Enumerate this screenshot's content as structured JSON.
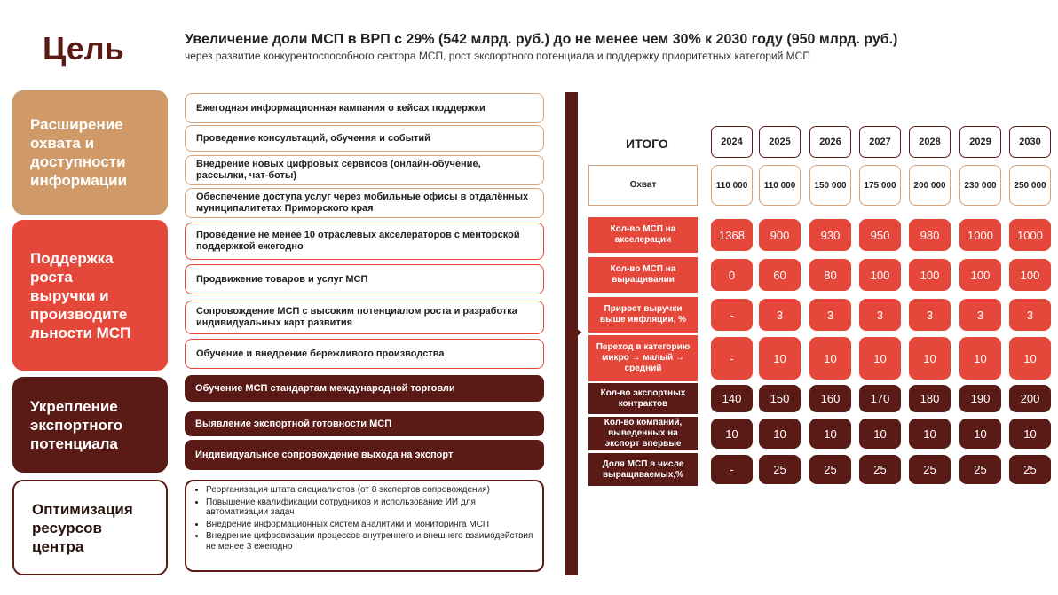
{
  "goal_label": "Цель",
  "title": "Увеличение доли МСП в ВРП с 29% (542 млрд. руб.) до не менее чем 30% к 2030 году (950 млрд. руб.)",
  "subtitle": "через развитие конкурентоспособного сектора МСП, рост экспортного потенциала и поддержку приоритетных категорий МСП",
  "categories": [
    {
      "lines": [
        "Расширение",
        "охвата и",
        "доступности",
        "информации"
      ]
    },
    {
      "lines": [
        "Поддержка",
        "роста",
        "выручки и",
        "производите",
        "льности МСП"
      ]
    },
    {
      "lines": [
        "Укрепление",
        "экспортного",
        "потенциала"
      ]
    },
    {
      "lines": [
        "Оптимизация",
        "ресурсов",
        "центра"
      ]
    }
  ],
  "actions": [
    "Ежегодная информационная кампания о кейсах поддержки",
    "Проведение консультаций, обучения и событий",
    "Внедрение новых цифровых сервисов (онлайн-обучение, рассылки, чат-боты)",
    "Обеспечение доступа услуг через мобильные офисы в отдалённых муниципалитетах Приморского края",
    "Проведение не менее 10 отраслевых акселераторов с менторской поддержкой ежегодно",
    "Продвижение товаров и услуг МСП",
    "Сопровождение МСП с высоким потенциалом роста и разработка индивидуальных карт развития",
    "Обучение и внедрение бережливого производства",
    "Обучение МСП стандартам международной торговли",
    "Выявление экспортной готовности МСП",
    "Индивидуальное сопровождение выхода на экспорт"
  ],
  "resource_items": [
    "Реорганизация штата специалистов (от 8 экспертов сопровождения)",
    "Повышение квалификации сотрудников и использование ИИ для автоматизации задач",
    "Внедрение информационных систем аналитики и мониторинга МСП",
    "Внедрение цифровизации процессов внутреннего и внешнего взаимодействия не менее 3 ежегодно"
  ],
  "table": {
    "itogo": "ИТОГО",
    "years": [
      "2024",
      "2025",
      "2026",
      "2027",
      "2028",
      "2029",
      "2030"
    ],
    "rows": [
      {
        "label": "Охват",
        "values": [
          "110 000",
          "110 000",
          "150 000",
          "175 000",
          "200 000",
          "230 000",
          "250 000"
        ]
      },
      {
        "label": "Кол-во МСП на акселерации",
        "values": [
          "1368",
          "900",
          "930",
          "950",
          "980",
          "1000",
          "1000"
        ]
      },
      {
        "label": "Кол-во МСП на выращивании",
        "values": [
          "0",
          "60",
          "80",
          "100",
          "100",
          "100",
          "100"
        ]
      },
      {
        "label": "Прирост выручки выше инфляции, %",
        "values": [
          "-",
          "3",
          "3",
          "3",
          "3",
          "3",
          "3"
        ]
      },
      {
        "label": "Переход в категорию микро → малый → средний",
        "values": [
          "-",
          "10",
          "10",
          "10",
          "10",
          "10",
          "10"
        ]
      },
      {
        "label": "Кол-во экспортных контрактов",
        "values": [
          "140",
          "150",
          "160",
          "170",
          "180",
          "190",
          "200"
        ]
      },
      {
        "label": "Кол-во компаний, выведенных на экспорт впервые",
        "values": [
          "10",
          "10",
          "10",
          "10",
          "10",
          "10",
          "10"
        ]
      },
      {
        "label": "Доля МСП в числе выращиваемых,%",
        "values": [
          "-",
          "25",
          "25",
          "25",
          "25",
          "25",
          "25"
        ]
      }
    ]
  },
  "colors": {
    "dark": "#5a1a16",
    "red": "#e5483a",
    "tan": "#cf9a68",
    "light_border": "#d8a47c"
  }
}
